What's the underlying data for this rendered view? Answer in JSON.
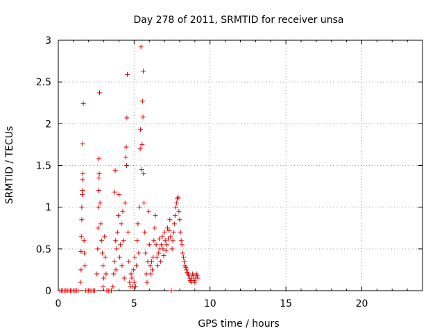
{
  "chart_data": {
    "type": "scatter",
    "title": "Day 278 of 2011, SRMTID for receiver unsa",
    "xlabel": "GPS time / hours",
    "ylabel": "SRMTID / TECUs",
    "xlim": [
      0,
      24
    ],
    "ylim": [
      0,
      3
    ],
    "xticks": [
      0,
      5,
      10,
      15,
      20
    ],
    "xtick_labels": [
      "0",
      "5",
      "10",
      "15",
      "20"
    ],
    "yticks": [
      0,
      0.5,
      1,
      1.5,
      2,
      2.5,
      3
    ],
    "ytick_labels": [
      "0",
      "0.5",
      "1",
      "1.5",
      "2",
      "2.5",
      "3"
    ],
    "grid": true,
    "marker": "+",
    "color": "#e00000",
    "series": [
      {
        "points": [
          [
            0.1,
            0
          ],
          [
            0.2,
            0
          ],
          [
            0.3,
            0
          ],
          [
            0.4,
            0
          ],
          [
            0.5,
            0
          ],
          [
            0.6,
            0
          ],
          [
            0.7,
            0
          ],
          [
            0.8,
            0
          ],
          [
            0.9,
            0
          ],
          [
            1.0,
            0
          ],
          [
            1.1,
            0
          ],
          [
            1.2,
            0
          ],
          [
            1.3,
            0
          ],
          [
            1.45,
            0.1
          ],
          [
            1.5,
            0.25
          ],
          [
            1.5,
            0.47
          ],
          [
            1.52,
            0.65
          ],
          [
            1.55,
            0.85
          ],
          [
            1.55,
            1.0
          ],
          [
            1.58,
            1.15
          ],
          [
            1.6,
            1.2
          ],
          [
            1.6,
            1.33
          ],
          [
            1.62,
            1.4
          ],
          [
            1.6,
            1.76
          ],
          [
            1.65,
            2.24
          ],
          [
            1.7,
            0.6
          ],
          [
            1.72,
            0.45
          ],
          [
            1.75,
            0.3
          ],
          [
            1.8,
            0
          ],
          [
            1.9,
            0
          ],
          [
            2.0,
            0
          ],
          [
            2.1,
            0
          ],
          [
            2.2,
            0
          ],
          [
            2.3,
            0
          ],
          [
            2.4,
            0
          ],
          [
            2.55,
            0.2
          ],
          [
            2.6,
            0.5
          ],
          [
            2.62,
            0.75
          ],
          [
            2.65,
            1.0
          ],
          [
            2.67,
            1.2
          ],
          [
            2.68,
            1.35
          ],
          [
            2.7,
            1.4
          ],
          [
            2.68,
            1.58
          ],
          [
            2.72,
            2.37
          ],
          [
            2.75,
            1.05
          ],
          [
            2.8,
            0.8
          ],
          [
            2.85,
            0.6
          ],
          [
            2.9,
            0.45
          ],
          [
            2.95,
            0.3
          ],
          [
            3.0,
            0.15
          ],
          [
            2.95,
            0.05
          ],
          [
            3.05,
            0.65
          ],
          [
            3.1,
            0.4
          ],
          [
            3.15,
            0.2
          ],
          [
            3.2,
            0
          ],
          [
            3.3,
            0
          ],
          [
            3.4,
            0
          ],
          [
            3.5,
            0
          ],
          [
            3.6,
            0.05
          ],
          [
            3.65,
            0.2
          ],
          [
            3.7,
            0.35
          ],
          [
            3.72,
            1.18
          ],
          [
            3.75,
            1.44
          ],
          [
            3.78,
            0.6
          ],
          [
            3.8,
            0.25
          ],
          [
            3.85,
            0.5
          ],
          [
            3.9,
            0.7
          ],
          [
            3.95,
            0.9
          ],
          [
            4.0,
            1.15
          ],
          [
            4.05,
            0.4
          ],
          [
            4.1,
            0.55
          ],
          [
            4.15,
            0.8
          ],
          [
            4.2,
            0.3
          ],
          [
            4.25,
            0.95
          ],
          [
            4.3,
            0.6
          ],
          [
            4.35,
            0.15
          ],
          [
            4.4,
            1.05
          ],
          [
            4.45,
            1.6
          ],
          [
            4.48,
            1.72
          ],
          [
            4.5,
            1.5
          ],
          [
            4.52,
            2.07
          ],
          [
            4.55,
            2.59
          ],
          [
            4.6,
            0.7
          ],
          [
            4.65,
            0.35
          ],
          [
            4.7,
            0.1
          ],
          [
            4.75,
            0.05
          ],
          [
            4.8,
            0.2
          ],
          [
            4.85,
            0.15
          ],
          [
            4.9,
            0.05
          ],
          [
            4.95,
            0.25
          ],
          [
            5.0,
            0.1
          ],
          [
            5.05,
            0.4
          ],
          [
            5.1,
            0.05
          ],
          [
            5.15,
            0.3
          ],
          [
            5.2,
            0.6
          ],
          [
            5.25,
            0.8
          ],
          [
            5.3,
            0.45
          ],
          [
            5.35,
            1.0
          ],
          [
            5.4,
            1.7
          ],
          [
            5.42,
            1.93
          ],
          [
            5.45,
            2.92
          ],
          [
            5.5,
            1.45
          ],
          [
            5.52,
            1.75
          ],
          [
            5.55,
            2.27
          ],
          [
            5.58,
            2.08
          ],
          [
            5.6,
            2.63
          ],
          [
            5.62,
            1.4
          ],
          [
            5.65,
            1.05
          ],
          [
            5.7,
            0.7
          ],
          [
            5.75,
            0.45
          ],
          [
            5.8,
            0.2
          ],
          [
            5.85,
            0.1
          ],
          [
            5.9,
            0.35
          ],
          [
            5.95,
            0.95
          ],
          [
            6.0,
            0.55
          ],
          [
            6.05,
            0.3
          ],
          [
            6.1,
            0.2
          ],
          [
            6.15,
            0.35
          ],
          [
            6.2,
            0.25
          ],
          [
            6.25,
            0.4
          ],
          [
            6.3,
            0.6
          ],
          [
            6.35,
            0.75
          ],
          [
            6.4,
            0.9
          ],
          [
            6.45,
            0.55
          ],
          [
            6.5,
            0.4
          ],
          [
            6.55,
            0.3
          ],
          [
            6.6,
            0.45
          ],
          [
            6.65,
            0.62
          ],
          [
            6.7,
            0.5
          ],
          [
            6.75,
            0.35
          ],
          [
            6.8,
            0.55
          ],
          [
            6.85,
            0.65
          ],
          [
            6.9,
            0.5
          ],
          [
            6.95,
            0.42
          ],
          [
            7.0,
            0.7
          ],
          [
            7.05,
            0.6
          ],
          [
            7.1,
            0.48
          ],
          [
            7.15,
            0.55
          ],
          [
            7.2,
            0.75
          ],
          [
            7.25,
            0.62
          ],
          [
            7.3,
            0.72
          ],
          [
            7.35,
            0.85
          ],
          [
            7.4,
            0.65
          ],
          [
            7.45,
            0.0
          ],
          [
            7.5,
            0.5
          ],
          [
            7.55,
            0.6
          ],
          [
            7.6,
            0.7
          ],
          [
            7.65,
            0.8
          ],
          [
            7.7,
            0.9
          ],
          [
            7.75,
            1.0
          ],
          [
            7.8,
            1.05
          ],
          [
            7.85,
            1.1
          ],
          [
            7.9,
            1.12
          ],
          [
            7.95,
            0.95
          ],
          [
            8.0,
            0.85
          ],
          [
            8.05,
            0.7
          ],
          [
            8.1,
            0.6
          ],
          [
            8.15,
            0.55
          ],
          [
            8.2,
            0.45
          ],
          [
            8.25,
            0.4
          ],
          [
            8.3,
            0.35
          ],
          [
            8.35,
            0.3
          ],
          [
            8.4,
            0.28
          ],
          [
            8.45,
            0.25
          ],
          [
            8.5,
            0.22
          ],
          [
            8.55,
            0.2
          ],
          [
            8.6,
            0.18
          ],
          [
            8.65,
            0.15
          ],
          [
            8.7,
            0.12
          ],
          [
            8.75,
            0.1
          ],
          [
            8.8,
            0.15
          ],
          [
            8.85,
            0.2
          ],
          [
            8.9,
            0.18
          ],
          [
            8.95,
            0.12
          ],
          [
            9.0,
            0.1
          ],
          [
            9.05,
            0.15
          ],
          [
            9.1,
            0.2
          ],
          [
            9.15,
            0.18
          ],
          [
            9.2,
            0.15
          ]
        ]
      }
    ]
  }
}
